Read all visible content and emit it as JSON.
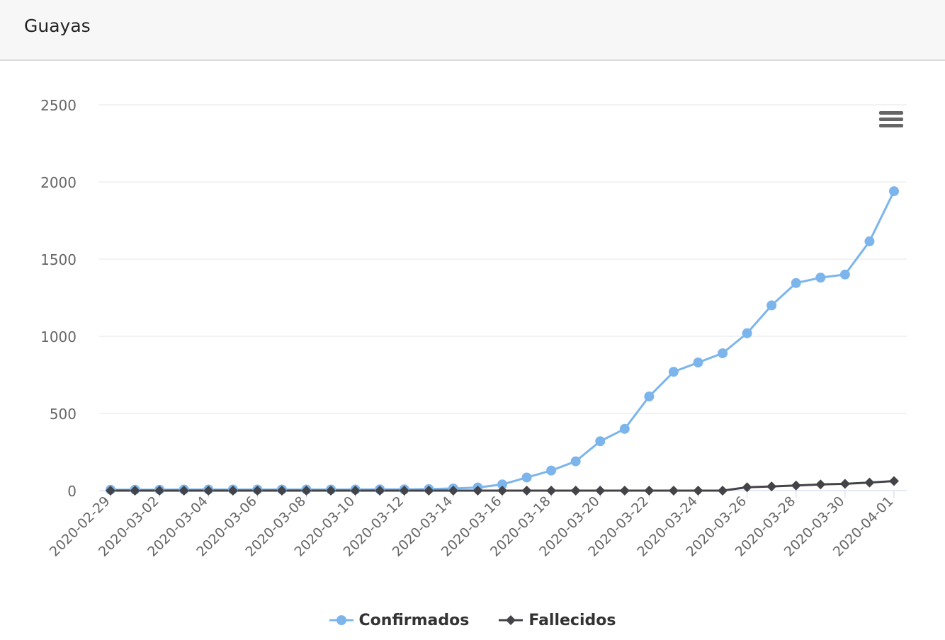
{
  "header": {
    "title": "Guayas"
  },
  "menu": {
    "icon": "hamburger-menu-icon"
  },
  "colors": {
    "confirmados": "#7cb5ec",
    "fallecidos": "#434348",
    "grid": "#e6e6e6",
    "axis_text": "#666666"
  },
  "chart_data": {
    "type": "line",
    "title": "",
    "xlabel": "",
    "ylabel": "",
    "ylim": [
      0,
      2500
    ],
    "y_ticks": [
      "0",
      "500",
      "1000",
      "1500",
      "2000",
      "2500"
    ],
    "grid": true,
    "legend_position": "bottom-center",
    "x": [
      "2020-02-29",
      "2020-03-01",
      "2020-03-02",
      "2020-03-03",
      "2020-03-04",
      "2020-03-05",
      "2020-03-06",
      "2020-03-07",
      "2020-03-08",
      "2020-03-09",
      "2020-03-10",
      "2020-03-11",
      "2020-03-12",
      "2020-03-13",
      "2020-03-14",
      "2020-03-15",
      "2020-03-16",
      "2020-03-17",
      "2020-03-18",
      "2020-03-19",
      "2020-03-20",
      "2020-03-21",
      "2020-03-22",
      "2020-03-23",
      "2020-03-24",
      "2020-03-25",
      "2020-03-26",
      "2020-03-27",
      "2020-03-28",
      "2020-03-29",
      "2020-03-30",
      "2020-03-31",
      "2020-04-01"
    ],
    "x_tick_labels": [
      "2020-02-29",
      "2020-03-02",
      "2020-03-04",
      "2020-03-06",
      "2020-03-08",
      "2020-03-10",
      "2020-03-12",
      "2020-03-14",
      "2020-03-16",
      "2020-03-18",
      "2020-03-20",
      "2020-03-22",
      "2020-03-24",
      "2020-03-26",
      "2020-03-28",
      "2020-03-30",
      "2020-04-01"
    ],
    "series": [
      {
        "name": "Confirmados",
        "marker": "circle",
        "values": [
          6,
          6,
          6,
          7,
          7,
          7,
          7,
          7,
          7,
          7,
          7,
          8,
          8,
          10,
          14,
          20,
          40,
          85,
          130,
          190,
          320,
          400,
          610,
          770,
          830,
          890,
          1020,
          1200,
          1345,
          1380,
          1400,
          1615,
          1940
        ]
      },
      {
        "name": "Fallecidos",
        "marker": "diamond",
        "values": [
          0,
          0,
          0,
          0,
          0,
          0,
          0,
          0,
          0,
          0,
          0,
          0,
          0,
          0,
          0,
          0,
          0,
          0,
          0,
          0,
          0,
          0,
          0,
          0,
          0,
          0,
          22,
          27,
          33,
          40,
          44,
          52,
          62
        ]
      }
    ]
  }
}
